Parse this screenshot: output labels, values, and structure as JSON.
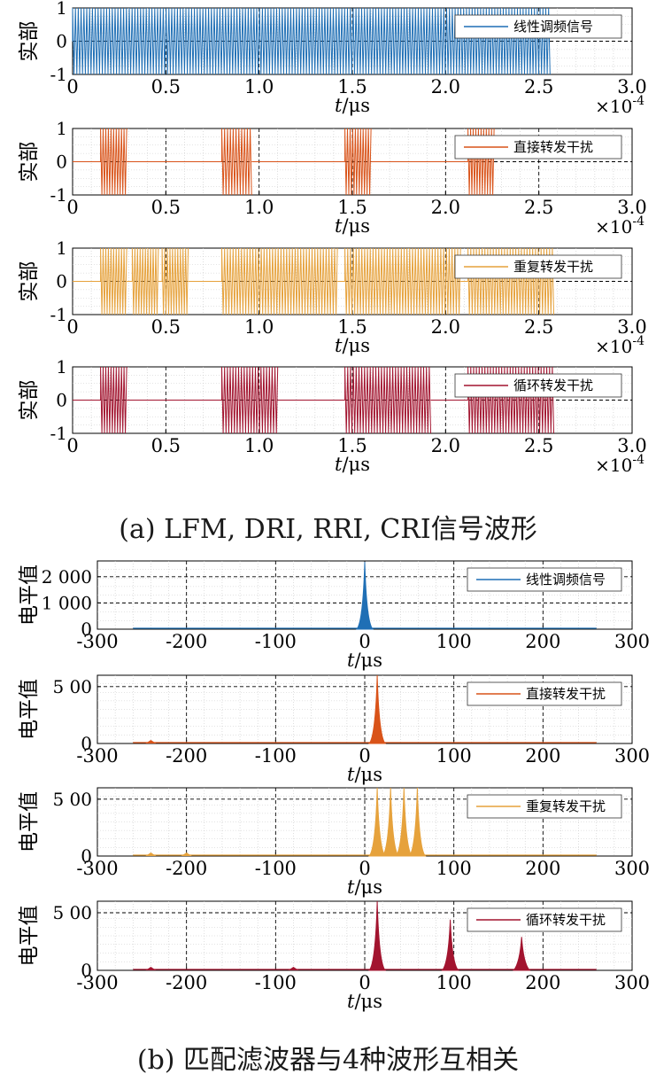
{
  "captions": {
    "a": "(a) LFM, DRI, RRI, CRI信号波形",
    "b": "(b) 匹配滤波器与4种波形互相关"
  },
  "chart_data": [
    {
      "type": "line",
      "group": "a",
      "ylabel": "实部",
      "xlabel": "t/μs",
      "exponent": "×10-4",
      "xlim": [
        0,
        3.0
      ],
      "ylim": [
        -1,
        1
      ],
      "xticks": [
        "0",
        "0.5",
        "1.0",
        "1.5",
        "2.0",
        "2.5",
        "3.0"
      ],
      "yticks": [
        "-1",
        "0",
        "1"
      ],
      "color": "#1f6fb5",
      "series": [
        {
          "name": "线性调频信号",
          "kind": "lfm",
          "segments": [
            [
              0,
              2.56
            ]
          ]
        }
      ]
    },
    {
      "type": "line",
      "group": "a",
      "ylabel": "实部",
      "xlabel": "t/μs",
      "exponent": "×10-4",
      "xlim": [
        0,
        3.0
      ],
      "ylim": [
        -1,
        1
      ],
      "xticks": [
        "0",
        "0.5",
        "1.0",
        "1.5",
        "2.0",
        "2.5",
        "3.0"
      ],
      "yticks": [
        "-1",
        "0",
        "1"
      ],
      "color": "#d95319",
      "series": [
        {
          "name": "直接转发干扰",
          "kind": "burst",
          "segments": [
            [
              0.15,
              0.29
            ],
            [
              0.8,
              0.96
            ],
            [
              1.46,
              1.6
            ],
            [
              2.12,
              2.26
            ]
          ]
        }
      ]
    },
    {
      "type": "line",
      "group": "a",
      "ylabel": "实部",
      "xlabel": "t/μs",
      "exponent": "×10-4",
      "xlim": [
        0,
        3.0
      ],
      "ylim": [
        -1,
        1
      ],
      "xticks": [
        "0",
        "0.5",
        "1.0",
        "1.5",
        "2.0",
        "2.5",
        "3.0"
      ],
      "yticks": [
        "-1",
        "0",
        "1"
      ],
      "color": "#e6a23c",
      "series": [
        {
          "name": "重复转发干扰",
          "kind": "burst",
          "segments": [
            [
              0.15,
              0.29
            ],
            [
              0.32,
              0.46
            ],
            [
              0.48,
              0.62
            ],
            [
              0.8,
              1.42
            ],
            [
              1.46,
              2.08
            ],
            [
              2.12,
              2.58
            ]
          ]
        }
      ]
    },
    {
      "type": "line",
      "group": "a",
      "ylabel": "实部",
      "xlabel": "t/μs",
      "exponent": "×10-4",
      "xlim": [
        0,
        3.0
      ],
      "ylim": [
        -1,
        1
      ],
      "xticks": [
        "0",
        "0.5",
        "1.0",
        "1.5",
        "2.0",
        "2.5",
        "3.0"
      ],
      "yticks": [
        "-1",
        "0",
        "1"
      ],
      "color": "#a2142f",
      "series": [
        {
          "name": "循环转发干扰",
          "kind": "burst",
          "segments": [
            [
              0.15,
              0.29
            ],
            [
              0.8,
              1.1
            ],
            [
              1.46,
              1.92
            ],
            [
              2.12,
              2.58
            ]
          ]
        }
      ]
    },
    {
      "type": "line",
      "group": "b",
      "ylabel": "电平值",
      "xlabel": "t/μs",
      "xlim": [
        -300,
        300
      ],
      "ylim": [
        0,
        2600
      ],
      "xticks": [
        "-300",
        "-200",
        "-100",
        "0",
        "100",
        "200",
        "300"
      ],
      "yticks": [
        "0",
        "1 000",
        "2 000"
      ],
      "ytick_values": [
        0,
        1000,
        2000
      ],
      "color": "#1f6fb5",
      "series": [
        {
          "name": "线性调频信号",
          "peaks": [
            [
              0,
              2560
            ]
          ]
        }
      ]
    },
    {
      "type": "line",
      "group": "b",
      "ylabel": "电平值",
      "xlabel": "t/μs",
      "xlim": [
        -300,
        300
      ],
      "ylim": [
        0,
        600
      ],
      "xticks": [
        "-300",
        "-200",
        "-100",
        "0",
        "100",
        "200",
        "300"
      ],
      "yticks": [
        "0",
        "5 00"
      ],
      "ytick_values": [
        0,
        500
      ],
      "color": "#d95319",
      "series": [
        {
          "name": "直接转发干扰",
          "peaks": [
            [
              14,
              600
            ],
            [
              -240,
              6
            ]
          ]
        }
      ]
    },
    {
      "type": "line",
      "group": "b",
      "ylabel": "电平值",
      "xlabel": "t/μs",
      "xlim": [
        -300,
        300
      ],
      "ylim": [
        0,
        600
      ],
      "xticks": [
        "-300",
        "-200",
        "-100",
        "0",
        "100",
        "200",
        "300"
      ],
      "yticks": [
        "0",
        "5 00"
      ],
      "ytick_values": [
        0,
        500
      ],
      "color": "#e6a23c",
      "series": [
        {
          "name": "重复转发干扰",
          "peaks": [
            [
              14,
              600
            ],
            [
              29,
              600
            ],
            [
              44,
              600
            ],
            [
              59,
              600
            ],
            [
              -240,
              8
            ],
            [
              -200,
              8
            ]
          ]
        }
      ]
    },
    {
      "type": "line",
      "group": "b",
      "ylabel": "电平值",
      "xlabel": "t/μs",
      "xlim": [
        -300,
        300
      ],
      "ylim": [
        0,
        600
      ],
      "xticks": [
        "-300",
        "-200",
        "-100",
        "0",
        "100",
        "200",
        "300"
      ],
      "yticks": [
        "0",
        "5 00"
      ],
      "ytick_values": [
        0,
        500
      ],
      "color": "#a2142f",
      "series": [
        {
          "name": "循环转发干扰",
          "peaks": [
            [
              14,
              600
            ],
            [
              96,
              440
            ],
            [
              176,
              290
            ],
            [
              -240,
              10
            ],
            [
              -80,
              8
            ]
          ]
        }
      ]
    }
  ]
}
